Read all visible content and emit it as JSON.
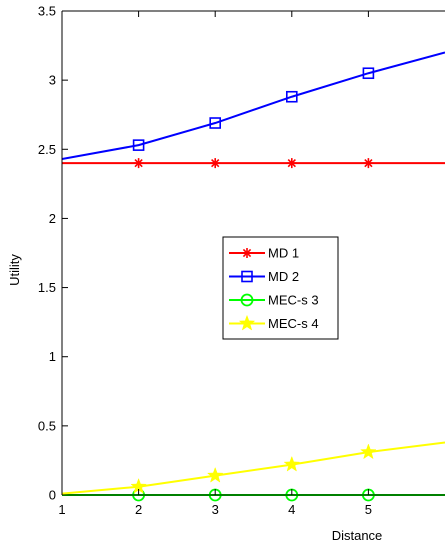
{
  "chart_data": {
    "type": "line",
    "title": "",
    "xlabel": "Distance",
    "ylabel": "Utility",
    "xlim": [
      1,
      6
    ],
    "ylim": [
      0,
      3.5
    ],
    "xticks": [
      1,
      2,
      3,
      4,
      5
    ],
    "yticks": [
      0,
      0.5,
      1,
      1.5,
      2,
      2.5,
      3,
      3.5
    ],
    "ytick_labels": [
      "0",
      "0.5",
      "1",
      "1.5",
      "2",
      "2.5",
      "3",
      "3.5"
    ],
    "grid": false,
    "legend_position": "center",
    "x": [
      1,
      2,
      3,
      4,
      5,
      6
    ],
    "series": [
      {
        "name": "MD 1",
        "color": "#ff0000",
        "marker": "asterisk",
        "values": [
          2.4,
          2.4,
          2.4,
          2.4,
          2.4,
          2.4
        ]
      },
      {
        "name": "MD 2",
        "color": "#0000ff",
        "marker": "square",
        "values": [
          2.43,
          2.53,
          2.69,
          2.88,
          3.05,
          3.2
        ]
      },
      {
        "name": "MEC-s 3",
        "color": "#00ff00",
        "marker": "circle",
        "values": [
          0,
          0,
          0,
          0,
          0,
          0
        ]
      },
      {
        "name": "MEC-s 4",
        "color": "#ffff00",
        "marker": "star",
        "values": [
          0.01,
          0.06,
          0.14,
          0.22,
          0.31,
          0.38
        ]
      }
    ]
  }
}
